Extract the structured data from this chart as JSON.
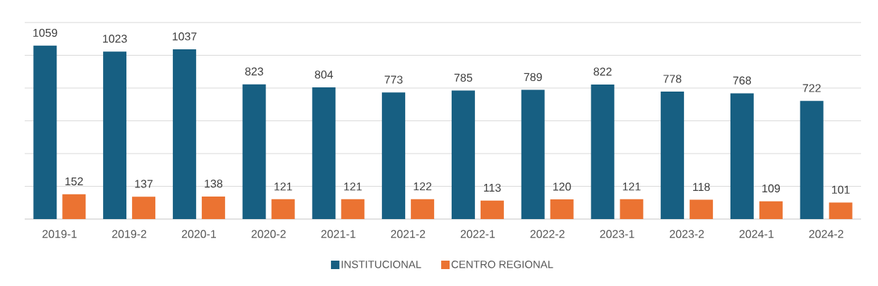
{
  "chart_data": {
    "type": "bar",
    "categories": [
      "2019-1",
      "2019-2",
      "2020-1",
      "2020-2",
      "2021-1",
      "2021-2",
      "2022-1",
      "2022-2",
      "2023-1",
      "2023-2",
      "2024-1",
      "2024-2"
    ],
    "series": [
      {
        "name": "INSTITUCIONAL",
        "color": "#175f82",
        "values": [
          1059,
          1023,
          1037,
          823,
          804,
          773,
          785,
          789,
          822,
          778,
          768,
          722
        ]
      },
      {
        "name": "CENTRO REGIONAL",
        "color": "#eb7332",
        "values": [
          152,
          137,
          138,
          121,
          121,
          122,
          113,
          120,
          121,
          118,
          109,
          101
        ]
      }
    ],
    "ylim": [
      0,
      1200
    ],
    "yticks": [
      {
        "value": 0,
        "label": null
      },
      {
        "value": 200,
        "label": null
      },
      {
        "value": 400,
        "label": null
      },
      {
        "value": 600,
        "label": null
      },
      {
        "value": 800,
        "label": null
      },
      {
        "value": 1000,
        "label": null
      },
      {
        "value": 1200,
        "label": null
      }
    ],
    "tick_labels": "x",
    "grid": "y",
    "legend": "bottom",
    "data_labels": true
  }
}
